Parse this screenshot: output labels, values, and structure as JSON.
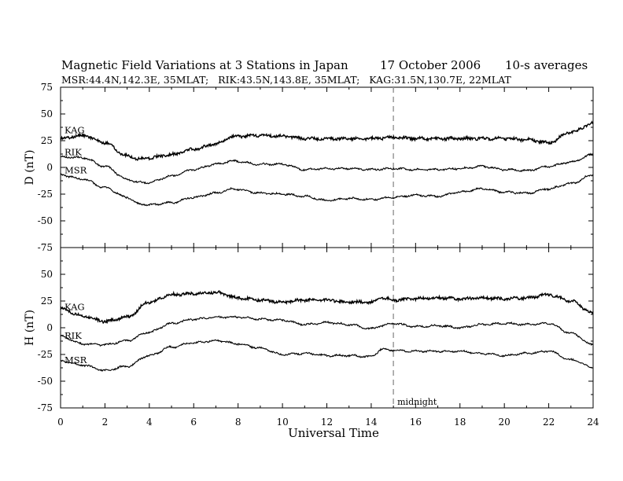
{
  "chart_data": {
    "type": "line",
    "title": "Magnetic Field Variations at 3 Stations in Japan",
    "date": "17 October 2006",
    "averaging": "10-s averages",
    "subtitle": "MSR:44.4N,142.3E, 35MLAT;   RIK:43.5N,143.8E, 35MLAT;   KAG:31.5N,130.7E, 22MLAT",
    "xlabel": "Universal Time",
    "xlim": [
      0,
      24
    ],
    "xticks": [
      "0",
      "2",
      "4",
      "6",
      "8",
      "10",
      "12",
      "14",
      "16",
      "18",
      "20",
      "22",
      "24"
    ],
    "yticks_d": [
      "75",
      "50",
      "25",
      "0",
      "-25",
      "-50",
      "-75"
    ],
    "yticks_h": [
      "50",
      "25",
      "0",
      "-25",
      "-50",
      "-75"
    ],
    "annotation": "midnight",
    "annotation_x": 15,
    "panels": [
      {
        "ylabel": "D (nT)",
        "ylim": [
          -75,
          75
        ],
        "x": [
          0,
          1,
          2,
          3,
          3.5,
          4,
          5,
          6,
          7,
          7.8,
          9,
          10,
          11,
          12,
          13,
          14,
          15,
          16,
          17,
          18,
          19,
          20,
          21,
          22,
          23,
          24
        ],
        "series": [
          {
            "name": "KAG",
            "values": [
              27,
              30,
              23,
              11,
              8,
              9,
              12,
              17,
              22,
              29,
              30,
              29,
              27,
              27,
              27,
              27,
              28,
              27,
              27,
              27,
              27,
              27,
              26,
              23,
              33,
              41
            ]
          },
          {
            "name": "RIK",
            "values": [
              10,
              9,
              1,
              -11,
              -14,
              -14,
              -8,
              -2,
              3,
              6,
              3,
              3,
              -2,
              -1,
              -1,
              -2,
              -1,
              -2,
              -2,
              -1,
              1,
              -2,
              -3,
              1,
              5,
              12
            ]
          },
          {
            "name": "MSR",
            "values": [
              -7,
              -11,
              -19,
              -28,
              -34,
              -35,
              -33,
              -28,
              -24,
              -20,
              -24,
              -25,
              -27,
              -31,
              -29,
              -30,
              -28,
              -26,
              -27,
              -23,
              -20,
              -23,
              -24,
              -20,
              -15,
              -7
            ]
          }
        ]
      },
      {
        "ylabel": "H (nT)",
        "ylim": [
          -75,
          75
        ],
        "x": [
          0,
          1,
          2,
          3,
          4,
          5,
          6,
          7,
          8,
          9,
          10,
          11,
          12,
          13,
          14,
          14.5,
          15,
          16,
          17,
          18,
          19,
          20,
          21,
          22,
          23,
          24
        ],
        "series": [
          {
            "name": "KAG",
            "values": [
              18,
              11,
              6,
              10,
              24,
              31,
              32,
              33,
              28,
              26,
              24,
              26,
              26,
              24,
              24,
              28,
              26,
              27,
              28,
              27,
              28,
              27,
              28,
              31,
              25,
              14
            ]
          },
          {
            "name": "RIK",
            "values": [
              -8,
              -15,
              -16,
              -12,
              -4,
              4,
              8,
              10,
              10,
              8,
              7,
              3,
              5,
              3,
              -1,
              2,
              4,
              1,
              2,
              0,
              3,
              4,
              3,
              4,
              -5,
              -16
            ]
          },
          {
            "name": "MSR",
            "values": [
              -31,
              -35,
              -40,
              -36,
              -26,
              -18,
              -14,
              -12,
              -15,
              -19,
              -25,
              -24,
              -26,
              -26,
              -27,
              -20,
              -21,
              -22,
              -22,
              -22,
              -24,
              -26,
              -24,
              -22,
              -30,
              -37
            ]
          }
        ]
      }
    ]
  }
}
